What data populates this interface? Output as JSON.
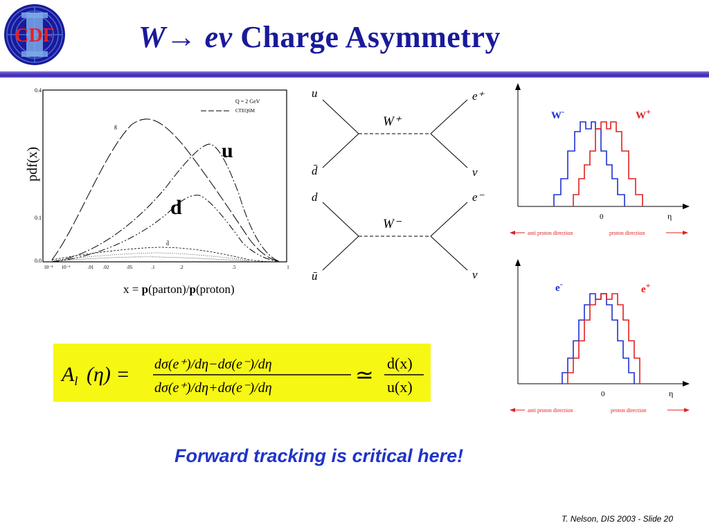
{
  "slide": {
    "logo_text": "CDF",
    "title_w": "W",
    "title_arrow": "→",
    "title_e": "e",
    "title_nu": "ν",
    "title_rest": "Charge Asymmetry",
    "footer_note": "Forward tracking is critical here!",
    "credit": "T. Nelson,  DIS 2003 - Slide 20",
    "colors": {
      "title": "#1a1a9a",
      "blue_text": "#1f34c8",
      "highlight": "#f7f714",
      "red": "#e02020",
      "blue": "#1f2fd0"
    }
  },
  "pdf_plot": {
    "ylabel": "pdf(x)",
    "xlabel_prefix": "x = ",
    "xlabel_p1": "p",
    "xlabel_mid": "(parton)/",
    "xlabel_p2": "p",
    "xlabel_suffix": "(proton)",
    "legend_q": "Q = 2 GeV",
    "legend_set": "CTEQ6M",
    "label_g": "g",
    "label_u": "u",
    "label_d": "d",
    "label_dbar": "d̄",
    "y_ticks": [
      "0.4",
      "0.1",
      "0.0"
    ],
    "x_ticks": [
      "10⁻⁴",
      "10⁻³",
      ".01",
      ".02",
      ".05",
      ".1",
      ".2",
      ".5",
      "1"
    ]
  },
  "feynman": {
    "top": {
      "q1": "u",
      "q2": "d̄",
      "boson": "W⁺",
      "l": "e⁺",
      "nu": "ν"
    },
    "bottom": {
      "q1": "d",
      "q2": "ū",
      "boson": "W⁻",
      "l": "e⁻",
      "nu": "ν"
    }
  },
  "histograms": {
    "top": {
      "neg_label": "W",
      "neg_sup": "-",
      "pos_label": "W",
      "pos_sup": "+",
      "x_zero": "0",
      "x_eta": "η",
      "anti_dir": "anti proton direction",
      "proton_dir": "proton direction"
    },
    "bottom": {
      "neg_label": "e",
      "neg_sup": "-",
      "pos_label": "e",
      "pos_sup": "+",
      "x_zero": "0",
      "x_eta": "η",
      "anti_dir": "anti proton direction",
      "proton_dir": "proton direction"
    }
  },
  "formula": {
    "lhs": "A",
    "lhs_sub": "l",
    "lhs_arg": "(η) =",
    "num": "dσ(e⁺)/dη−dσ(e⁻)/dη",
    "den": "dσ(e⁺)/dη+dσ(e⁻)/dη",
    "approx": "≃",
    "ratio_num": "d(x)",
    "ratio_den": "u(x)"
  }
}
